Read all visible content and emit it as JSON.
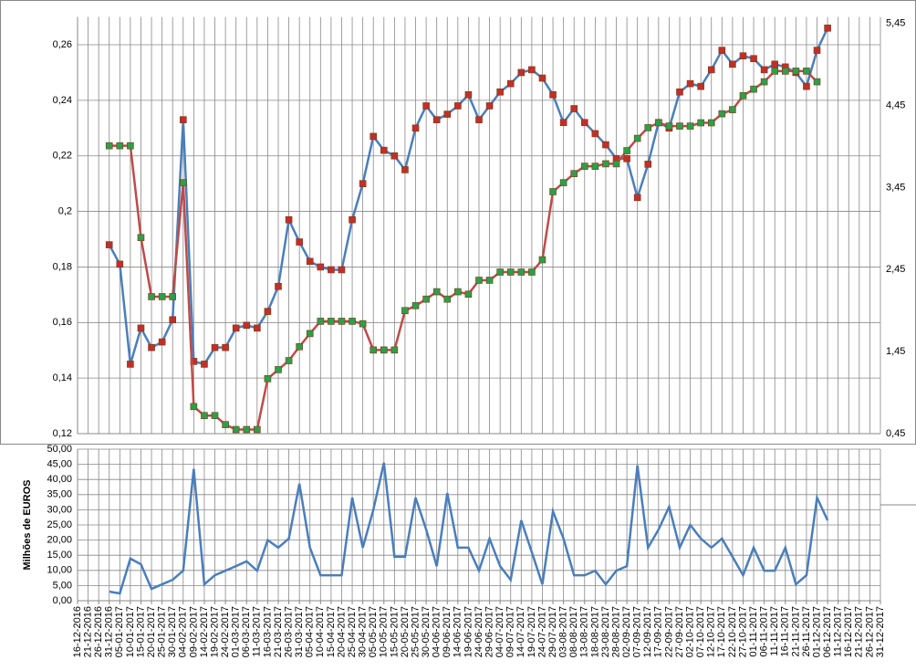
{
  "chart_data": [
    {
      "type": "line",
      "series": [
        {
          "color": "#4a7ebb",
          "marker_color": "#c0302a",
          "axis": "y",
          "values": [
            null,
            null,
            null,
            0.188,
            0.181,
            0.145,
            0.158,
            0.151,
            0.153,
            0.161,
            0.233,
            0.146,
            0.145,
            0.151,
            0.151,
            0.158,
            0.159,
            0.158,
            0.164,
            0.173,
            0.197,
            0.189,
            0.182,
            0.18,
            0.179,
            0.179,
            0.197,
            0.21,
            0.227,
            0.222,
            0.22,
            0.215,
            0.23,
            0.238,
            0.233,
            0.235,
            0.238,
            0.242,
            0.233,
            0.238,
            0.243,
            0.246,
            0.25,
            0.251,
            0.248,
            0.242,
            0.232,
            0.237,
            0.232,
            0.228,
            0.224,
            0.219,
            0.219,
            0.205,
            0.217,
            0.232,
            0.23,
            0.243,
            0.246,
            0.245,
            0.251,
            0.258,
            0.253,
            0.256,
            0.255,
            0.251,
            0.253,
            0.252,
            0.25,
            0.245,
            0.258,
            0.266,
            null,
            null,
            null,
            null,
            null
          ]
        },
        {
          "color": "#be4b48",
          "marker_color": "#2e9e4a",
          "axis": "y2",
          "values": [
            null,
            null,
            null,
            3.96,
            3.96,
            3.96,
            2.84,
            2.12,
            2.12,
            2.12,
            3.51,
            0.78,
            0.67,
            0.67,
            0.56,
            0.5,
            0.5,
            0.5,
            1.12,
            1.23,
            1.34,
            1.51,
            1.67,
            1.82,
            1.82,
            1.82,
            1.82,
            1.79,
            1.47,
            1.47,
            1.47,
            1.95,
            2.01,
            2.09,
            2.18,
            2.09,
            2.18,
            2.15,
            2.32,
            2.32,
            2.42,
            2.42,
            2.42,
            2.42,
            2.57,
            3.4,
            3.51,
            3.62,
            3.71,
            3.71,
            3.74,
            3.74,
            3.9,
            4.05,
            4.18,
            4.24,
            4.2,
            4.2,
            4.2,
            4.24,
            4.24,
            4.35,
            4.4,
            4.57,
            4.65,
            4.74,
            4.87,
            4.87,
            4.87,
            4.87,
            4.74,
            null,
            null,
            null,
            null,
            null,
            null
          ]
        }
      ],
      "ylim": [
        0.12,
        0.27
      ],
      "yticks": [
        {
          "value": 0.12,
          "label": "0,12"
        },
        {
          "value": 0.14,
          "label": "0,14"
        },
        {
          "value": 0.16,
          "label": "0,16"
        },
        {
          "value": 0.18,
          "label": "0,18"
        },
        {
          "value": 0.2,
          "label": "0,2"
        },
        {
          "value": 0.22,
          "label": "0,22"
        },
        {
          "value": 0.24,
          "label": "0,24"
        },
        {
          "value": 0.26,
          "label": "0,26"
        }
      ],
      "y2lim": [
        0.45,
        5.53
      ],
      "y2ticks": [
        {
          "value": 0.45,
          "label": "0,45"
        },
        {
          "value": 1.45,
          "label": "1,45"
        },
        {
          "value": 2.45,
          "label": "2,45"
        },
        {
          "value": 3.45,
          "label": "3,45"
        },
        {
          "value": 4.45,
          "label": "4,45"
        },
        {
          "value": 5.45,
          "label": "5,45"
        }
      ],
      "grid": true
    },
    {
      "type": "line",
      "ylabel": "Milhões de EUROS",
      "categories": [
        "16-12-2016",
        "21-12-2016",
        "26-12-2016",
        "31-12-2016",
        "05-01-2017",
        "10-01-2017",
        "15-01-2017",
        "20-01-2017",
        "25-01-2017",
        "30-01-2017",
        "04-02-2017",
        "09-02-2017",
        "14-02-2017",
        "19-02-2017",
        "24-02-2017",
        "01-03-2017",
        "06-03-2017",
        "11-03-2017",
        "16-03-2017",
        "21-03-2017",
        "26-03-2017",
        "31-03-2017",
        "05-04-2017",
        "10-04-2017",
        "15-04-2017",
        "20-04-2017",
        "25-04-2017",
        "30-04-2017",
        "05-05-2017",
        "10-05-2017",
        "15-05-2017",
        "20-05-2017",
        "25-05-2017",
        "30-05-2017",
        "04-06-2017",
        "09-06-2017",
        "14-06-2017",
        "19-06-2017",
        "24-06-2017",
        "29-06-2017",
        "04-07-2017",
        "09-07-2017",
        "14-07-2017",
        "19-07-2017",
        "24-07-2017",
        "29-07-2017",
        "03-08-2017",
        "08-08-2017",
        "13-08-2017",
        "18-08-2017",
        "23-08-2017",
        "28-08-2017",
        "02-09-2017",
        "07-09-2017",
        "12-09-2017",
        "17-09-2017",
        "22-09-2017",
        "27-09-2017",
        "02-10-2017",
        "07-10-2017",
        "12-10-2017",
        "17-10-2017",
        "22-10-2017",
        "27-10-2017",
        "01-11-2017",
        "06-11-2017",
        "11-11-2017",
        "16-11-2017",
        "21-11-2017",
        "26-11-2017",
        "01-12-2017",
        "06-12-2017",
        "11-12-2017",
        "16-12-2017",
        "21-12-2017",
        "26-12-2017",
        "31-12-2017"
      ],
      "color": "#4a7ebb",
      "values": [
        null,
        null,
        null,
        3.0,
        2.4,
        13.9,
        12,
        3.9,
        5.4,
        6.9,
        9.9,
        43.5,
        5.4,
        8.4,
        9.9,
        11.4,
        13,
        9.9,
        20,
        17.5,
        20.5,
        38.6,
        17.5,
        8.4,
        8.4,
        8.4,
        34,
        17.5,
        30,
        45.5,
        14.5,
        14.5,
        34,
        23.5,
        11.4,
        35.5,
        17.5,
        17.5,
        9.9,
        20.5,
        11.4,
        6.9,
        26.5,
        16,
        5.4,
        29.5,
        20.5,
        8.4,
        8.4,
        9.9,
        5.4,
        9.9,
        11.4,
        44.6,
        17.5,
        23.5,
        31,
        17.5,
        25,
        20.5,
        17.5,
        20.5,
        14.5,
        8.4,
        17.5,
        9.9,
        9.9,
        17.5,
        5.4,
        8.4,
        34,
        26.5,
        null,
        null,
        null,
        null,
        null
      ],
      "ylim": [
        0,
        50
      ],
      "yticks": [
        {
          "value": 0,
          "label": "0,00"
        },
        {
          "value": 5,
          "label": "5,00"
        },
        {
          "value": 10,
          "label": "10,00"
        },
        {
          "value": 15,
          "label": "15,00"
        },
        {
          "value": 20,
          "label": "20,00"
        },
        {
          "value": 25,
          "label": "25,00"
        },
        {
          "value": 30,
          "label": "30,00"
        },
        {
          "value": 35,
          "label": "35,00"
        },
        {
          "value": 40,
          "label": "40,00"
        },
        {
          "value": 45,
          "label": "45,00"
        },
        {
          "value": 50,
          "label": "50,00"
        }
      ],
      "grid": true
    }
  ]
}
